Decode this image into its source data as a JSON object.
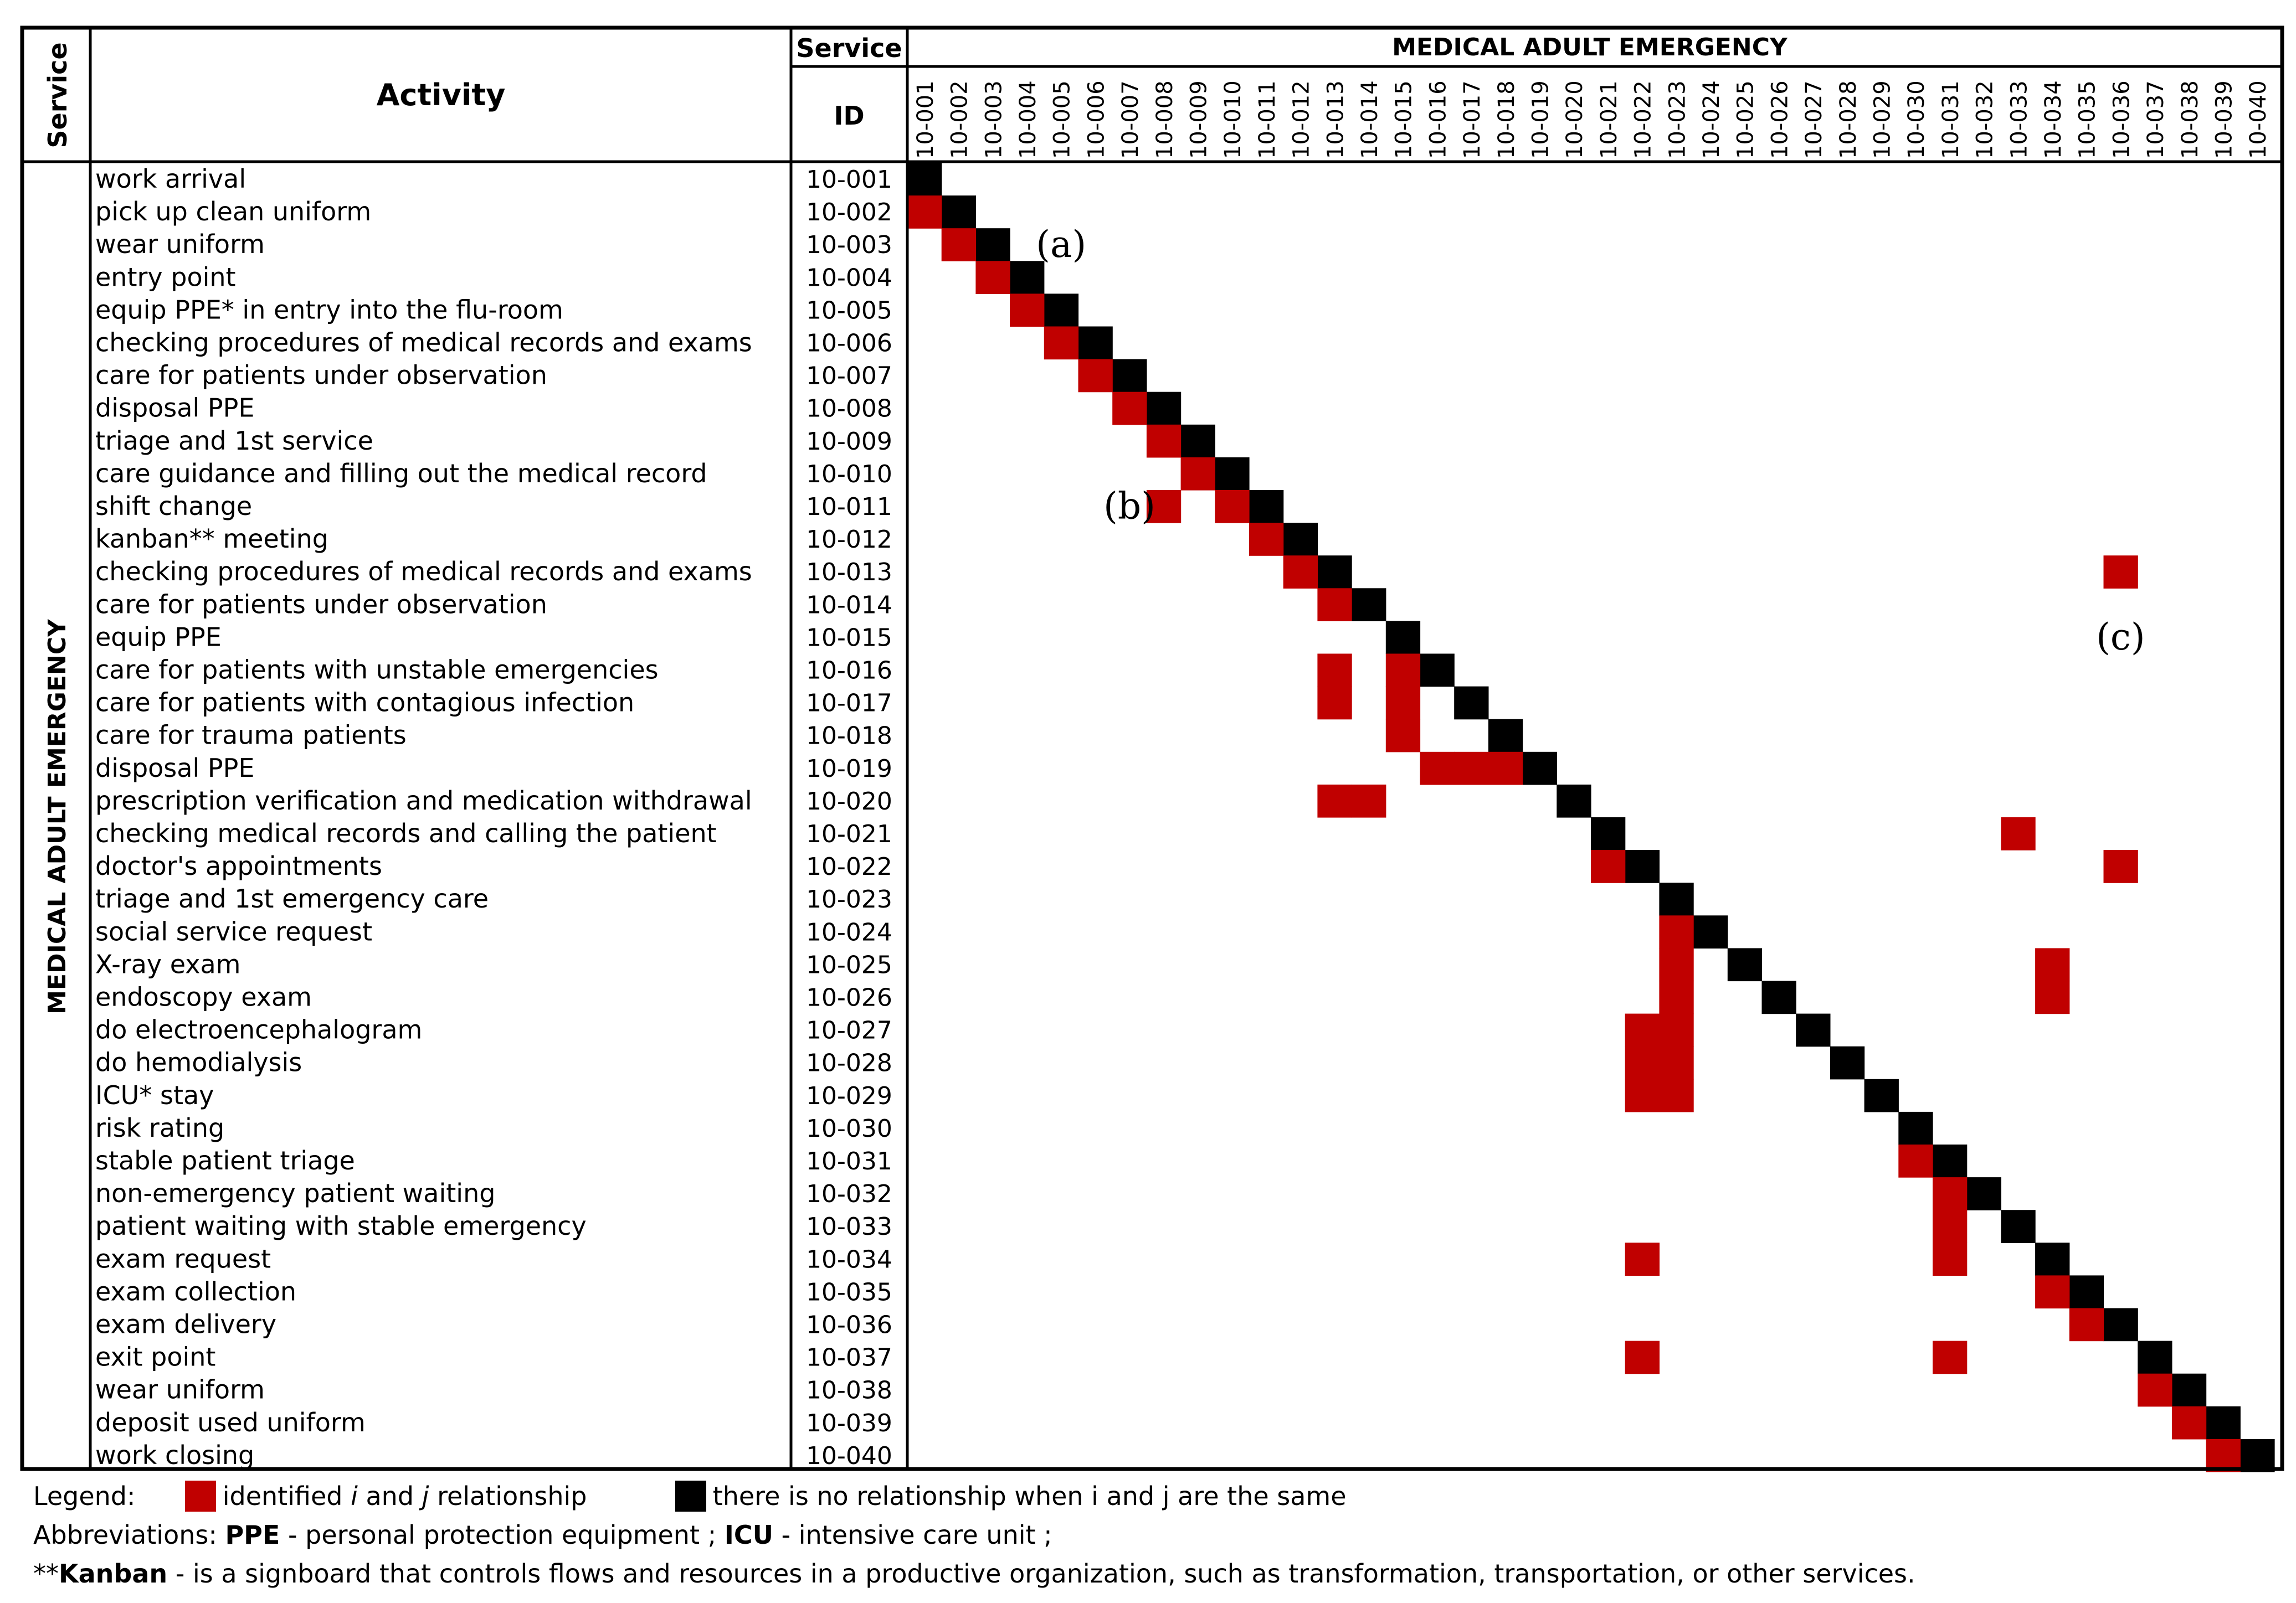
{
  "chart_data": {
    "type": "heatmap",
    "title": "MEDICAL ADULT EMERGENCY",
    "header": {
      "service_label": "Service",
      "activity_label": "Activity",
      "service_top": "Service",
      "id_label": "ID",
      "section_title": "MEDICAL ADULT EMERGENCY",
      "service_vertical": "MEDICAL ADULT EMERGENCY"
    },
    "rows": [
      {
        "id": "10-001",
        "activity": "work arrival"
      },
      {
        "id": "10-002",
        "activity": "pick up clean uniform"
      },
      {
        "id": "10-003",
        "activity": "wear uniform"
      },
      {
        "id": "10-004",
        "activity": "entry point"
      },
      {
        "id": "10-005",
        "activity": "equip PPE* in entry into the flu-room"
      },
      {
        "id": "10-006",
        "activity": "checking procedures of medical records and exams"
      },
      {
        "id": "10-007",
        "activity": "care for patients under observation"
      },
      {
        "id": "10-008",
        "activity": "disposal PPE"
      },
      {
        "id": "10-009",
        "activity": "triage and 1st service"
      },
      {
        "id": "10-010",
        "activity": "care guidance and filling out the medical record"
      },
      {
        "id": "10-011",
        "activity": "shift change"
      },
      {
        "id": "10-012",
        "activity": "kanban** meeting"
      },
      {
        "id": "10-013",
        "activity": "checking procedures of medical records and exams"
      },
      {
        "id": "10-014",
        "activity": "care for patients under observation"
      },
      {
        "id": "10-015",
        "activity": "equip PPE"
      },
      {
        "id": "10-016",
        "activity": "care for patients with unstable emergencies"
      },
      {
        "id": "10-017",
        "activity": "care for patients with contagious infection"
      },
      {
        "id": "10-018",
        "activity": "care for trauma patients"
      },
      {
        "id": "10-019",
        "activity": "disposal PPE"
      },
      {
        "id": "10-020",
        "activity": "prescription verification and medication withdrawal"
      },
      {
        "id": "10-021",
        "activity": "checking medical records and calling the patient"
      },
      {
        "id": "10-022",
        "activity": "doctor's appointments"
      },
      {
        "id": "10-023",
        "activity": "triage and 1st emergency care"
      },
      {
        "id": "10-024",
        "activity": "social service request"
      },
      {
        "id": "10-025",
        "activity": "X-ray exam"
      },
      {
        "id": "10-026",
        "activity": "endoscopy exam"
      },
      {
        "id": "10-027",
        "activity": "do electroencephalogram"
      },
      {
        "id": "10-028",
        "activity": "do hemodialysis"
      },
      {
        "id": "10-029",
        "activity": "ICU* stay"
      },
      {
        "id": "10-030",
        "activity": "risk rating"
      },
      {
        "id": "10-031",
        "activity": "stable patient triage"
      },
      {
        "id": "10-032",
        "activity": "non-emergency patient waiting"
      },
      {
        "id": "10-033",
        "activity": "patient waiting with stable emergency"
      },
      {
        "id": "10-034",
        "activity": "exam request"
      },
      {
        "id": "10-035",
        "activity": "exam collection"
      },
      {
        "id": "10-036",
        "activity": "exam delivery"
      },
      {
        "id": "10-037",
        "activity": "exit point"
      },
      {
        "id": "10-038",
        "activity": "wear uniform"
      },
      {
        "id": "10-039",
        "activity": "deposit used uniform"
      },
      {
        "id": "10-040",
        "activity": "work closing"
      }
    ],
    "columns": [
      "10-001",
      "10-002",
      "10-003",
      "10-004",
      "10-005",
      "10-006",
      "10-007",
      "10-008",
      "10-009",
      "10-010",
      "10-011",
      "10-012",
      "10-013",
      "10-014",
      "10-015",
      "10-016",
      "10-017",
      "10-018",
      "10-019",
      "10-020",
      "10-021",
      "10-022",
      "10-023",
      "10-024",
      "10-025",
      "10-026",
      "10-027",
      "10-028",
      "10-029",
      "10-030",
      "10-031",
      "10-032",
      "10-033",
      "10-034",
      "10-035",
      "10-036",
      "10-037",
      "10-038",
      "10-039",
      "10-040"
    ],
    "diagonal": "black",
    "relationships": [
      {
        "row": "10-002",
        "col": "10-001"
      },
      {
        "row": "10-003",
        "col": "10-002"
      },
      {
        "row": "10-004",
        "col": "10-003"
      },
      {
        "row": "10-005",
        "col": "10-004"
      },
      {
        "row": "10-006",
        "col": "10-005"
      },
      {
        "row": "10-007",
        "col": "10-006"
      },
      {
        "row": "10-008",
        "col": "10-007"
      },
      {
        "row": "10-009",
        "col": "10-008"
      },
      {
        "row": "10-010",
        "col": "10-009"
      },
      {
        "row": "10-011",
        "col": "10-008"
      },
      {
        "row": "10-011",
        "col": "10-010"
      },
      {
        "row": "10-012",
        "col": "10-011"
      },
      {
        "row": "10-013",
        "col": "10-012"
      },
      {
        "row": "10-013",
        "col": "10-036"
      },
      {
        "row": "10-014",
        "col": "10-013"
      },
      {
        "row": "10-016",
        "col": "10-013"
      },
      {
        "row": "10-016",
        "col": "10-015"
      },
      {
        "row": "10-017",
        "col": "10-013"
      },
      {
        "row": "10-017",
        "col": "10-015"
      },
      {
        "row": "10-018",
        "col": "10-015"
      },
      {
        "row": "10-019",
        "col": "10-016"
      },
      {
        "row": "10-019",
        "col": "10-017"
      },
      {
        "row": "10-019",
        "col": "10-018"
      },
      {
        "row": "10-020",
        "col": "10-013"
      },
      {
        "row": "10-020",
        "col": "10-014"
      },
      {
        "row": "10-021",
        "col": "10-033"
      },
      {
        "row": "10-022",
        "col": "10-021"
      },
      {
        "row": "10-022",
        "col": "10-036"
      },
      {
        "row": "10-024",
        "col": "10-023"
      },
      {
        "row": "10-025",
        "col": "10-023"
      },
      {
        "row": "10-025",
        "col": "10-034"
      },
      {
        "row": "10-026",
        "col": "10-023"
      },
      {
        "row": "10-026",
        "col": "10-034"
      },
      {
        "row": "10-027",
        "col": "10-022"
      },
      {
        "row": "10-027",
        "col": "10-023"
      },
      {
        "row": "10-028",
        "col": "10-022"
      },
      {
        "row": "10-028",
        "col": "10-023"
      },
      {
        "row": "10-029",
        "col": "10-022"
      },
      {
        "row": "10-029",
        "col": "10-023"
      },
      {
        "row": "10-031",
        "col": "10-030"
      },
      {
        "row": "10-032",
        "col": "10-031"
      },
      {
        "row": "10-033",
        "col": "10-031"
      },
      {
        "row": "10-034",
        "col": "10-022"
      },
      {
        "row": "10-034",
        "col": "10-031"
      },
      {
        "row": "10-035",
        "col": "10-034"
      },
      {
        "row": "10-036",
        "col": "10-035"
      },
      {
        "row": "10-037",
        "col": "10-022"
      },
      {
        "row": "10-037",
        "col": "10-031"
      },
      {
        "row": "10-038",
        "col": "10-037"
      },
      {
        "row": "10-039",
        "col": "10-038"
      },
      {
        "row": "10-040",
        "col": "10-039"
      }
    ],
    "annotations": [
      {
        "text": "(a)",
        "row": "10-003",
        "col": "10-005"
      },
      {
        "text": "(b)",
        "row": "10-011",
        "col": "10-007"
      },
      {
        "text": "(c)",
        "row": "10-015",
        "col": "10-036"
      }
    ],
    "colors": {
      "relationship": "#c00000",
      "same": "#000000",
      "border": "#000000"
    }
  },
  "legend": {
    "label": "Legend:",
    "red_prefix": "identified ",
    "red_i": "i",
    "red_mid": " and ",
    "red_j": "j",
    "red_suffix": " relationship",
    "black_text": "there is no relationship when i and j are the same"
  },
  "abbreviations": {
    "label": "Abbreviations: ",
    "ppe_key": "PPE",
    "ppe_text": " - personal protection equipment ; ",
    "icu_key": "ICU",
    "icu_text": " - intensive care unit ;"
  },
  "kanban_note": {
    "prefix": "**",
    "key": "Kanban",
    "text": " - is a signboard that controls flows and resources in a productive organization, such as transformation, transportation, or other services."
  }
}
